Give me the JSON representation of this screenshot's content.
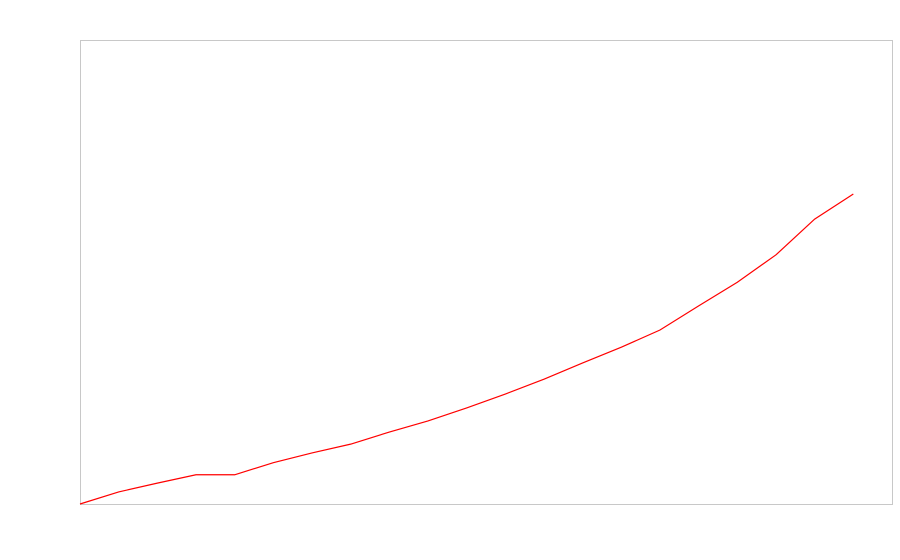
{
  "chart_data": {
    "type": "line",
    "x": [
      0,
      1,
      2,
      3,
      4,
      5,
      6,
      7,
      8,
      9,
      10,
      11,
      12,
      13,
      14,
      15,
      16,
      17,
      18,
      19,
      20
    ],
    "series": [
      {
        "color": "#ff0000",
        "values": [
          0,
          2.6,
          4.5,
          6.3,
          6.3,
          8.9,
          11.0,
          12.9,
          15.5,
          17.9,
          20.7,
          23.7,
          26.9,
          30.4,
          33.8,
          37.5,
          42.7,
          47.8,
          53.7,
          61.4,
          66.8
        ]
      }
    ],
    "xlim": [
      0,
      21
    ],
    "ylim": [
      0,
      100
    ]
  }
}
